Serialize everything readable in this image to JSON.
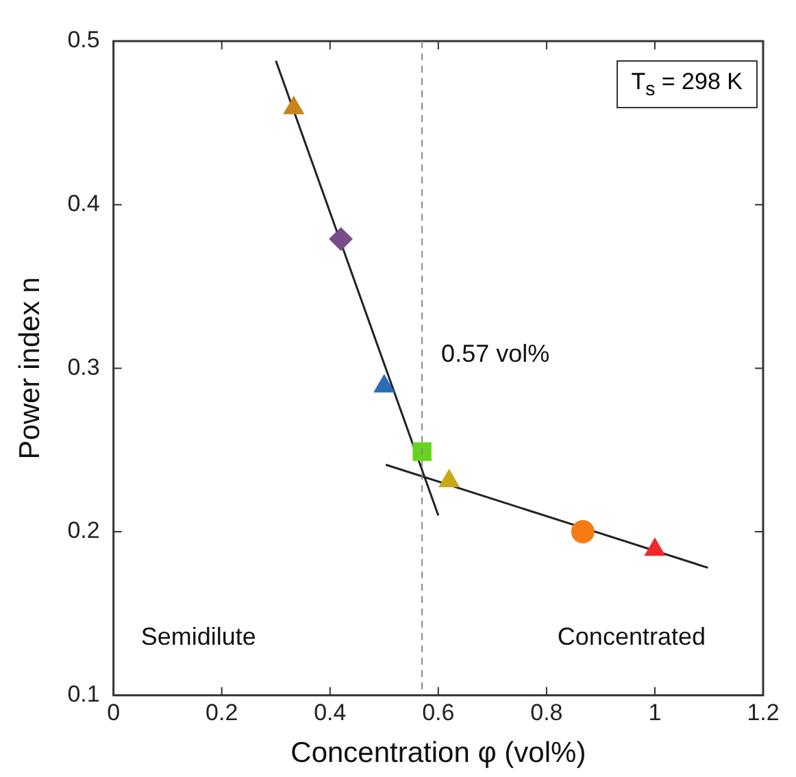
{
  "chart_data": {
    "type": "scatter",
    "xlabel": "Concentration φ (vol%)",
    "ylabel": "Power index n",
    "xlim": [
      0,
      1.2
    ],
    "ylim": [
      0.1,
      0.5
    ],
    "xticks": [
      0,
      0.2,
      0.4,
      0.6,
      0.8,
      1,
      1.2
    ],
    "yticks": [
      0.1,
      0.2,
      0.3,
      0.4,
      0.5
    ],
    "grid": false,
    "legend": false,
    "series": [
      {
        "color": "#c8841c",
        "marker": "triangle",
        "x": [
          0.333
        ],
        "values": [
          0.459
        ]
      },
      {
        "color": "#7a4c88",
        "marker": "diamond",
        "x": [
          0.42
        ],
        "values": [
          0.379
        ]
      },
      {
        "color": "#2a6db4",
        "marker": "triangle",
        "x": [
          0.5
        ],
        "values": [
          0.289
        ]
      },
      {
        "color": "#66d41e",
        "marker": "square",
        "x": [
          0.57
        ],
        "values": [
          0.249
        ]
      },
      {
        "color": "#c8a814",
        "marker": "triangle",
        "x": [
          0.62
        ],
        "values": [
          0.231
        ]
      },
      {
        "color": "#f57c14",
        "marker": "circle",
        "x": [
          0.867
        ],
        "values": [
          0.2
        ]
      },
      {
        "color": "#ec2a2a",
        "marker": "triangle",
        "x": [
          1.0
        ],
        "values": [
          0.189
        ]
      },
      {
        "type": "line",
        "color": "#222222",
        "marker": "none",
        "line_style": "solid",
        "x": [
          0.3,
          0.6
        ],
        "values": [
          0.488,
          0.21
        ]
      },
      {
        "type": "line",
        "color": "#222222",
        "marker": "none",
        "line_style": "solid",
        "x": [
          0.503,
          1.098
        ],
        "values": [
          0.241,
          0.178
        ]
      }
    ],
    "ref_lines": [
      {
        "axis": "x",
        "value": 0.57,
        "label": "0.57 vol%",
        "color": "#888888",
        "line_style": "dashed"
      }
    ],
    "annotations": [
      "Semidilute",
      "Concentrated",
      "T$_{s}$ = 298 K"
    ]
  }
}
